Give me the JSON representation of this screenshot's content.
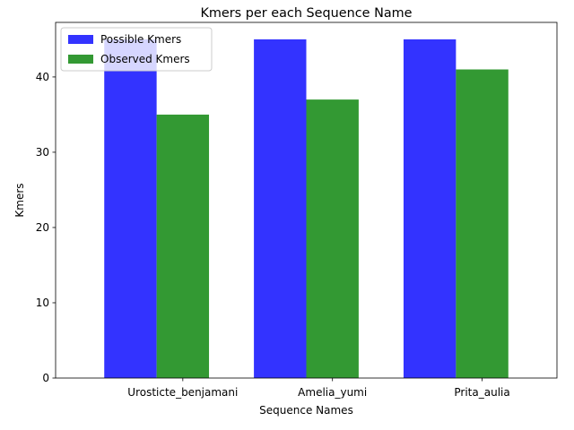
{
  "chart_data": {
    "type": "bar",
    "title": "Kmers per each Sequence Name",
    "xlabel": "Sequence Names",
    "ylabel": "Kmers",
    "categories": [
      "Urosticte_benjamani",
      "Amelia_yumi",
      "Prita_aulia"
    ],
    "series": [
      {
        "name": "Possible Kmers",
        "values": [
          45,
          45,
          45
        ],
        "color": "#3333ff"
      },
      {
        "name": "Observed Kmers",
        "values": [
          35,
          37,
          41
        ],
        "color": "#339933"
      }
    ],
    "ylim": [
      0,
      47.25
    ],
    "yticks": [
      0,
      10,
      20,
      30,
      40
    ],
    "legend": "upper-left",
    "grid": false
  }
}
